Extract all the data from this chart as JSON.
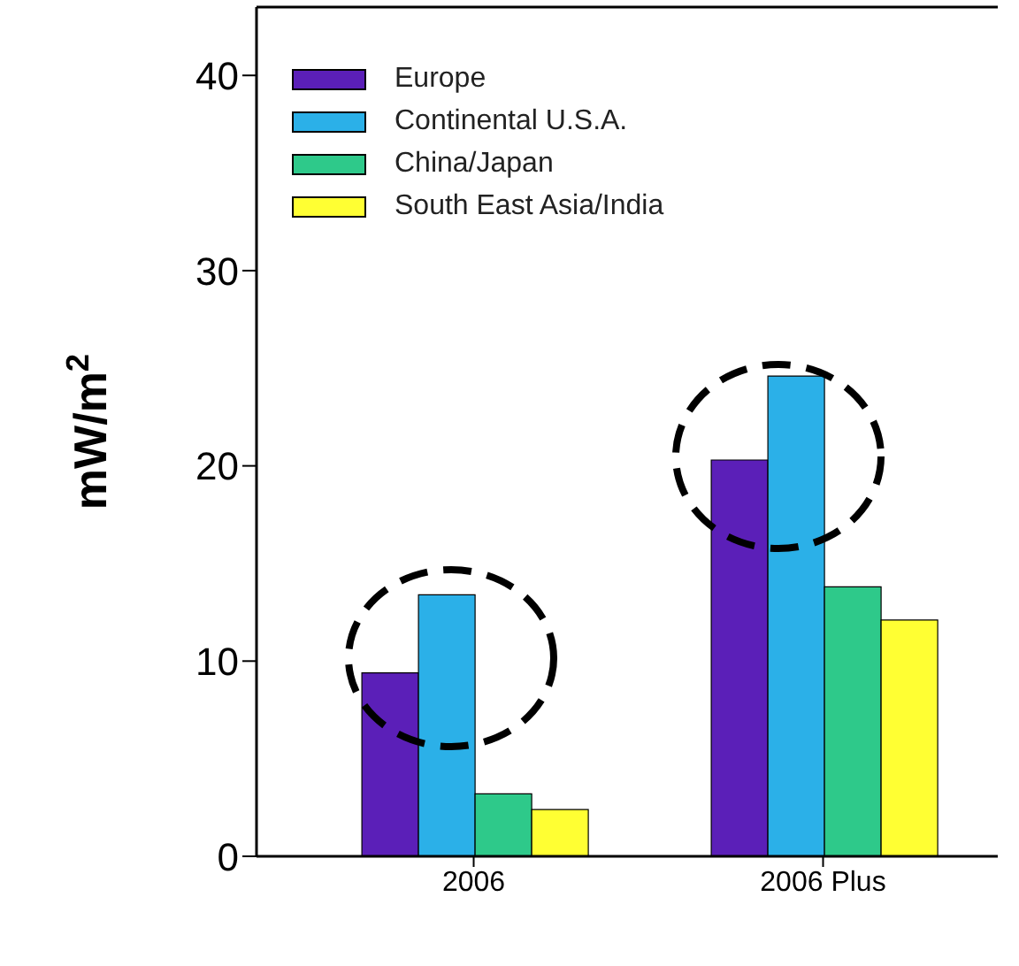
{
  "chart_data": {
    "type": "bar",
    "ylabel": "mW/m$^{2}$",
    "categories": [
      "2006",
      "2006 Plus"
    ],
    "series": [
      {
        "name": "Europe",
        "color": "#5b1fb8",
        "values": [
          9.4,
          20.3
        ]
      },
      {
        "name": "Continental U.S.A.",
        "color": "#2bb0e8",
        "values": [
          13.4,
          24.6
        ]
      },
      {
        "name": "China/Japan",
        "color": "#2ec98a",
        "values": [
          3.2,
          13.8
        ]
      },
      {
        "name": "South East Asia/India",
        "color": "#ffff33",
        "values": [
          2.4,
          12.1
        ]
      }
    ],
    "ylim": [
      0,
      43.5
    ],
    "yticks": [
      0,
      10,
      20,
      30,
      40
    ],
    "legend": "top left"
  }
}
